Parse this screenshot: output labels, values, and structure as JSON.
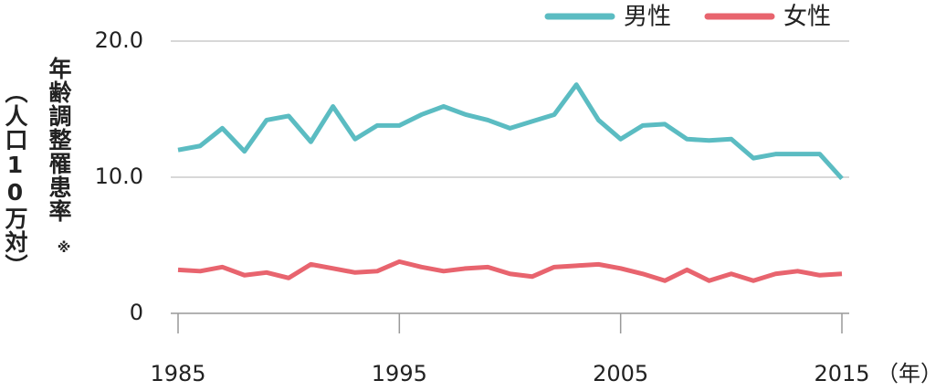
{
  "chart_data": {
    "type": "line",
    "y_label": "年齢調整罹患率",
    "y_label_note": "※",
    "y_unit": "（人口10万対）",
    "x_unit": "（年）",
    "x": [
      1985,
      1986,
      1987,
      1988,
      1989,
      1990,
      1991,
      1992,
      1993,
      1994,
      1995,
      1996,
      1997,
      1998,
      1999,
      2000,
      2001,
      2002,
      2003,
      2004,
      2005,
      2006,
      2007,
      2008,
      2009,
      2010,
      2011,
      2012,
      2013,
      2014,
      2015
    ],
    "series": [
      {
        "name": "男性",
        "color": "#5bbcc2",
        "values": [
          12.0,
          12.3,
          13.6,
          11.9,
          14.2,
          14.5,
          12.6,
          15.2,
          12.8,
          13.8,
          13.8,
          14.6,
          15.2,
          14.6,
          14.2,
          13.6,
          14.1,
          14.6,
          16.8,
          14.2,
          12.8,
          13.8,
          13.9,
          12.8,
          12.7,
          12.8,
          11.4,
          11.7,
          11.7,
          11.7,
          9.9
        ]
      },
      {
        "name": "女性",
        "color": "#e8646e",
        "values": [
          3.2,
          3.1,
          3.4,
          2.8,
          3.0,
          2.6,
          3.6,
          3.3,
          3.0,
          3.1,
          3.8,
          3.4,
          3.1,
          3.3,
          3.4,
          2.9,
          2.7,
          3.4,
          3.5,
          3.6,
          3.3,
          2.9,
          2.4,
          3.2,
          2.4,
          2.9,
          2.4,
          2.9,
          3.1,
          2.8,
          2.9
        ]
      }
    ],
    "xlim": [
      1985,
      2015
    ],
    "xticks": [
      1985,
      1995,
      2005,
      2015
    ],
    "ylim": [
      0,
      20
    ],
    "yticks": [
      0,
      {
        "value": 10,
        "label": "10.0"
      },
      {
        "value": 20,
        "label": "20.0"
      }
    ],
    "grid": true,
    "legend": "top-right"
  }
}
